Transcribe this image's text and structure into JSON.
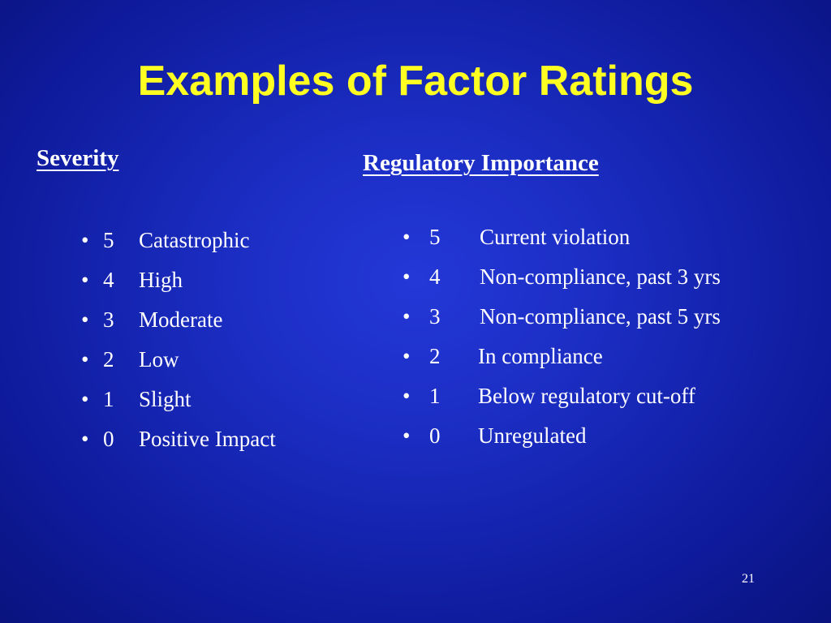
{
  "slide": {
    "title": "Examples of Factor Ratings",
    "page_number": "21"
  },
  "severity": {
    "heading": "Severity",
    "items": [
      {
        "bullet": "•",
        "score": "5",
        "label": "Catastrophic"
      },
      {
        "bullet": "•",
        "score": "4",
        "label": "High"
      },
      {
        "bullet": "•",
        "score": "3",
        "label": "Moderate"
      },
      {
        "bullet": "•",
        "score": "2",
        "label": "Low"
      },
      {
        "bullet": "•",
        "score": "1",
        "label": "Slight"
      },
      {
        "bullet": "•",
        "score": "0",
        "label": "Positive Impact"
      }
    ]
  },
  "regulatory": {
    "heading": "Regulatory Importance",
    "items": [
      {
        "bullet": "•",
        "score": "5",
        "label": "Current violation"
      },
      {
        "bullet": "•",
        "score": "4",
        "label": "Non-compliance, past 3 yrs"
      },
      {
        "bullet": "•",
        "score": "3",
        "label": "Non-compliance, past 5 yrs"
      },
      {
        "bullet": "•",
        "score": "2",
        "label": "In compliance"
      },
      {
        "bullet": "•",
        "score": "1",
        "label": "Below regulatory cut-off"
      },
      {
        "bullet": "•",
        "score": "0",
        "label": "Unregulated"
      }
    ]
  },
  "colors": {
    "background": "#1a2cc0",
    "title": "#ffff22",
    "text": "#ffffff"
  }
}
